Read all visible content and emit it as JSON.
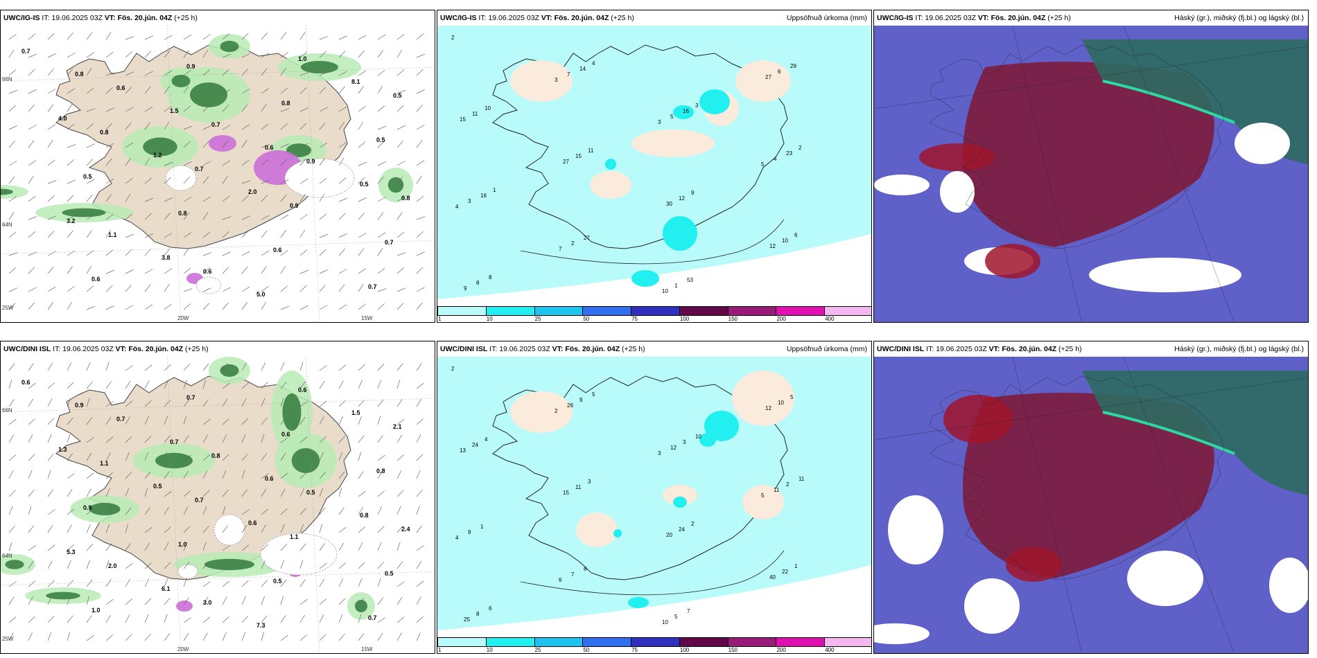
{
  "panels": [
    {
      "model": "UWC/IG-IS",
      "it_label": "IT:",
      "it_value": "19.06.2025 03Z",
      "vt_label": "VT:",
      "vt_value": "Fös. 20.jún. 04Z",
      "lead": "(+25 h)",
      "right_title": "",
      "kind": "wind"
    },
    {
      "model": "UWC/IG-IS",
      "it_label": "IT:",
      "it_value": "19.06.2025 03Z",
      "vt_label": "VT:",
      "vt_value": "Fös. 20.jún. 04Z",
      "lead": "(+25 h)",
      "right_title": "Uppsöfnuð úrkoma (mm)",
      "kind": "precip"
    },
    {
      "model": "UWC/IG-IS",
      "it_label": "IT:",
      "it_value": "19.06.2025 03Z",
      "vt_label": "VT:",
      "vt_value": "Fös. 20.jún. 04Z",
      "lead": "(+25 h)",
      "right_title": "Háský (gr.), miðský (fj.bl.) og lágský (bl.)",
      "kind": "cloud"
    },
    {
      "model": "UWC/DINI ISL",
      "it_label": "IT:",
      "it_value": "19.06.2025 03Z",
      "vt_label": "VT:",
      "vt_value": "Fös. 20.jún. 04Z",
      "lead": "(+25 h)",
      "right_title": "",
      "kind": "wind"
    },
    {
      "model": "UWC/DINI ISL",
      "it_label": "IT:",
      "it_value": "19.06.2025 03Z",
      "vt_label": "VT:",
      "vt_value": "Fös. 20.jún. 04Z",
      "lead": "(+25 h)",
      "right_title": "Uppsöfnuð úrkoma (mm)",
      "kind": "precip"
    },
    {
      "model": "UWC/DINI ISL",
      "it_label": "IT:",
      "it_value": "19.06.2025 03Z",
      "vt_label": "VT:",
      "vt_value": "Fös. 20.jún. 04Z",
      "lead": "(+25 h)",
      "right_title": "Háský (gr.), miðský (fj.bl.) og lágský (bl.)",
      "kind": "cloud"
    }
  ],
  "axis_labels": {
    "lat66": "66N",
    "lat64": "64N",
    "lon20": "20W",
    "lon15": "15W",
    "lon25": "25W"
  },
  "colorbar": {
    "ticks": [
      "1",
      "10",
      "25",
      "50",
      "75",
      "100",
      "150",
      "200",
      "400"
    ],
    "colors": [
      "#b8fbfa",
      "#22f0f0",
      "#1cc4ee",
      "#2f6ff0",
      "#3030c0",
      "#620848",
      "#9a1a7a",
      "#e010b0",
      "#f4b8f0"
    ]
  },
  "wind_values": {
    "top": [
      "0.7",
      "0.6",
      "0.7",
      "0.9",
      "0.8",
      "1.1",
      "0.6",
      "1.0",
      "0.5",
      "0.8",
      "0.7",
      "0.9",
      "0.7",
      "0.6",
      "0.9",
      "0.8",
      "0.5",
      "0.5",
      "0.8",
      "0.6",
      "0.7",
      "0.8",
      "1.5",
      "0.6",
      "0.5",
      "3.2",
      "3.8",
      "5.0",
      "8.1",
      "4.0",
      "1.2",
      "2.0"
    ],
    "bottom": [
      "0.6",
      "0.7",
      "0.8",
      "0.5",
      "2.4",
      "2.0",
      "3.0",
      "0.6",
      "2.1",
      "1.1",
      "0.7",
      "1.1",
      "0.5",
      "1.0",
      "0.7",
      "0.6",
      "0.8",
      "0.9",
      "1.0",
      "0.5",
      "0.7",
      "0.9",
      "0.7",
      "0.6",
      "0.8",
      "5.3",
      "6.1",
      "7.3",
      "1.5",
      "1.3",
      "0.5",
      "0.6"
    ]
  },
  "precip_values": {
    "top": [
      "2",
      "3",
      "3",
      "5",
      "4",
      "7",
      "10",
      "27",
      "15",
      "27",
      "30",
      "12",
      "9",
      "7",
      "5",
      "4",
      "3",
      "2",
      "1",
      "6",
      "11",
      "15",
      "12",
      "10",
      "8",
      "14",
      "16",
      "23",
      "16",
      "27",
      "53",
      "29",
      "10",
      "11",
      "9",
      "6",
      "8",
      "4",
      "3",
      "2",
      "1"
    ],
    "bottom": [
      "2",
      "2",
      "3",
      "5",
      "4",
      "6",
      "10",
      "12",
      "13",
      "15",
      "20",
      "40",
      "25",
      "26",
      "12",
      "11",
      "9",
      "7",
      "5",
      "10",
      "24",
      "11",
      "24",
      "22",
      "8",
      "9",
      "3",
      "2",
      "1",
      "6",
      "7",
      "5",
      "4",
      "3",
      "2",
      "1",
      "6",
      "5",
      "10",
      "11"
    ]
  }
}
